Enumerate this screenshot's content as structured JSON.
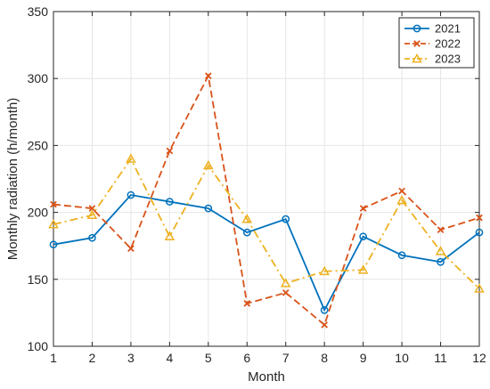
{
  "chart_data": {
    "type": "line",
    "title": "",
    "xlabel": "Month",
    "ylabel": "Monthly radiation (h/month)",
    "x": [
      1,
      2,
      3,
      4,
      5,
      6,
      7,
      8,
      9,
      10,
      11,
      12
    ],
    "xlim": [
      1,
      12
    ],
    "ylim": [
      100,
      350
    ],
    "xticks": [
      "1",
      "2",
      "3",
      "4",
      "5",
      "6",
      "7",
      "8",
      "9",
      "10",
      "11",
      "12"
    ],
    "yticks": [
      "100",
      "150",
      "200",
      "250",
      "300",
      "350"
    ],
    "grid": true,
    "legend_position": "top-right",
    "series": [
      {
        "name": "2021",
        "color": "#0072BD",
        "line_style": "solid",
        "marker": "circle",
        "values": [
          176,
          181,
          213,
          208,
          203,
          185,
          195,
          127,
          182,
          168,
          163,
          185
        ]
      },
      {
        "name": "2022",
        "color": "#D95319",
        "line_style": "dashed",
        "marker": "x",
        "values": [
          206,
          203,
          173,
          246,
          302,
          132,
          140,
          116,
          203,
          216,
          187,
          196
        ]
      },
      {
        "name": "2023",
        "color": "#EDB120",
        "line_style": "dash-dot",
        "marker": "triangle",
        "values": [
          191,
          198,
          240,
          182,
          235,
          195,
          147,
          156,
          157,
          209,
          171,
          143
        ]
      }
    ]
  }
}
